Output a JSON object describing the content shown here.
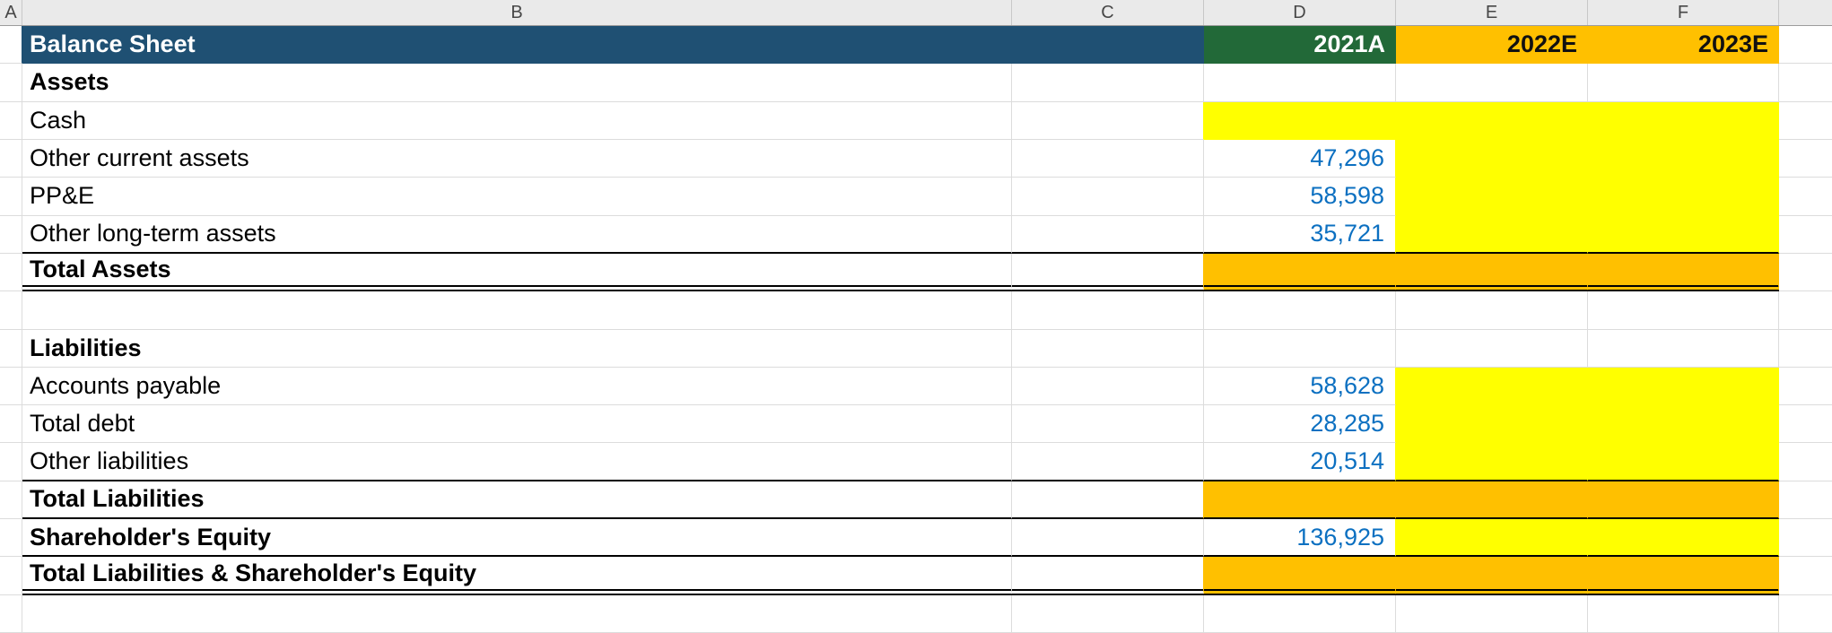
{
  "columns": {
    "headers": [
      "A",
      "B",
      "C",
      "D",
      "E",
      "F"
    ]
  },
  "title_row": {
    "title": "Balance Sheet",
    "year_actual": "2021A",
    "year_estimate_1": "2022E",
    "year_estimate_2": "2023E"
  },
  "rows": [
    {
      "label": "Assets",
      "bold": true,
      "d": "",
      "fill_d": "none",
      "fill_ef": "none",
      "border": "none"
    },
    {
      "label": "Cash",
      "bold": false,
      "d": "",
      "fill_d": "yellow",
      "fill_ef": "yellow",
      "border": "none"
    },
    {
      "label": "Other current assets",
      "bold": false,
      "d": "47,296",
      "fill_d": "white",
      "fill_ef": "yellow",
      "border": "none"
    },
    {
      "label": "PP&E",
      "bold": false,
      "d": "58,598",
      "fill_d": "white",
      "fill_ef": "yellow",
      "border": "none"
    },
    {
      "label": "Other long-term assets",
      "bold": false,
      "d": "35,721",
      "fill_d": "white",
      "fill_ef": "yellow",
      "border": "single"
    },
    {
      "label": "Total Assets",
      "bold": true,
      "d": "",
      "fill_d": "orange",
      "fill_ef": "orange",
      "border": "double"
    },
    {
      "label": "",
      "bold": false,
      "d": "",
      "fill_d": "none",
      "fill_ef": "none",
      "border": "none"
    },
    {
      "label": "Liabilities",
      "bold": true,
      "d": "",
      "fill_d": "none",
      "fill_ef": "none",
      "border": "none"
    },
    {
      "label": "Accounts payable",
      "bold": false,
      "d": "58,628",
      "fill_d": "white",
      "fill_ef": "yellow",
      "border": "none"
    },
    {
      "label": "Total debt",
      "bold": false,
      "d": "28,285",
      "fill_d": "white",
      "fill_ef": "yellow",
      "border": "none"
    },
    {
      "label": "Other liabilities",
      "bold": false,
      "d": "20,514",
      "fill_d": "white",
      "fill_ef": "yellow",
      "border": "single"
    },
    {
      "label": "Total Liabilities",
      "bold": true,
      "d": "",
      "fill_d": "orange",
      "fill_ef": "orange",
      "border": "single"
    },
    {
      "label": "Shareholder's Equity",
      "bold": true,
      "d": "136,925",
      "fill_d": "white",
      "fill_ef": "yellow",
      "border": "single"
    },
    {
      "label": "Total Liabilities & Shareholder's Equity",
      "bold": true,
      "d": "",
      "fill_d": "orange",
      "fill_ef": "orange",
      "border": "double"
    },
    {
      "label": "",
      "bold": false,
      "d": "",
      "fill_d": "none",
      "fill_ef": "none",
      "border": "none"
    }
  ],
  "colors": {
    "title_bar_bg": "#1F5073",
    "actual_year_bg": "#226938",
    "estimate_year_bg": "#FFC000",
    "input_cell_bg": "#FFFF00",
    "total_row_bg": "#FFC000",
    "value_text": "#0C70C1",
    "gridline": "#DCDCDC",
    "column_header_bg": "#EAEAEA"
  }
}
